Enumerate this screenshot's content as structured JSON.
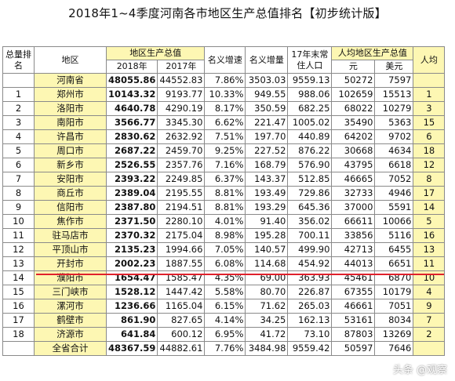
{
  "title": "2018年1~4季度河南各市地区生产总值排名【初步统计版】",
  "header": {
    "rank": "总量排名",
    "region": "地区",
    "gdp_group": "地区生产总值",
    "gdp_2018": "2018年",
    "gdp_2017": "2017年",
    "nominal_growth": "名义增速",
    "nominal_increase": "名义增量",
    "resident_pop": "17年末常住人口",
    "per_capita_group": "人均地区生产总值",
    "per_capita_yuan": "元",
    "per_capita_usd": "美元",
    "per_capita_rank": "人均"
  },
  "rows": [
    {
      "rank": "",
      "region": "河南省",
      "gdp2018": "48055.86",
      "gdp2017": "44552.83",
      "growth": "7.86%",
      "increase": "3503.03",
      "pop": "9559.13",
      "yuan": "50272",
      "usd": "7597",
      "pc_rank": ""
    },
    {
      "rank": "1",
      "region": "郑州市",
      "gdp2018": "10143.32",
      "gdp2017": "9193.77",
      "growth": "10.33%",
      "increase": "949.55",
      "pop": "988.06",
      "yuan": "102659",
      "usd": "15513",
      "pc_rank": "1"
    },
    {
      "rank": "2",
      "region": "洛阳市",
      "gdp2018": "4640.78",
      "gdp2017": "4290.19",
      "growth": "8.17%",
      "increase": "350.59",
      "pop": "682.25",
      "yuan": "68022",
      "usd": "10279",
      "pc_rank": "3"
    },
    {
      "rank": "3",
      "region": "南阳市",
      "gdp2018": "3566.77",
      "gdp2017": "3345.30",
      "growth": "6.62%",
      "increase": "221.47",
      "pop": "1005.02",
      "yuan": "35490",
      "usd": "5363",
      "pc_rank": "15"
    },
    {
      "rank": "4",
      "region": "许昌市",
      "gdp2018": "2830.62",
      "gdp2017": "2632.92",
      "growth": "7.51%",
      "increase": "197.70",
      "pop": "440.89",
      "yuan": "64202",
      "usd": "9702",
      "pc_rank": "6"
    },
    {
      "rank": "5",
      "region": "周口市",
      "gdp2018": "2687.22",
      "gdp2017": "2459.70",
      "growth": "9.25%",
      "increase": "227.52",
      "pop": "876.22",
      "yuan": "30668",
      "usd": "4634",
      "pc_rank": "18"
    },
    {
      "rank": "6",
      "region": "新乡市",
      "gdp2018": "2526.55",
      "gdp2017": "2357.76",
      "growth": "7.16%",
      "increase": "168.79",
      "pop": "576.90",
      "yuan": "43795",
      "usd": "6618",
      "pc_rank": "12"
    },
    {
      "rank": "7",
      "region": "安阳市",
      "gdp2018": "2393.22",
      "gdp2017": "2249.85",
      "growth": "6.37%",
      "increase": "143.37",
      "pop": "512.85",
      "yuan": "46665",
      "usd": "7052",
      "pc_rank": "8"
    },
    {
      "rank": "8",
      "region": "商丘市",
      "gdp2018": "2389.04",
      "gdp2017": "2195.55",
      "growth": "8.81%",
      "increase": "193.49",
      "pop": "729.86",
      "yuan": "32733",
      "usd": "4946",
      "pc_rank": "17"
    },
    {
      "rank": "9",
      "region": "信阳市",
      "gdp2018": "2387.80",
      "gdp2017": "2194.51",
      "growth": "8.81%",
      "increase": "193.29",
      "pop": "645.36",
      "yuan": "37000",
      "usd": "5591",
      "pc_rank": "14"
    },
    {
      "rank": "10",
      "region": "焦作市",
      "gdp2018": "2371.50",
      "gdp2017": "2280.10",
      "growth": "4.01%",
      "increase": "91.40",
      "pop": "356.02",
      "yuan": "66611",
      "usd": "10066",
      "pc_rank": "5"
    },
    {
      "rank": "11",
      "region": "驻马店市",
      "gdp2018": "2370.32",
      "gdp2017": "2175.04",
      "growth": "8.98%",
      "increase": "195.28",
      "pop": "700.11",
      "yuan": "33856",
      "usd": "5116",
      "pc_rank": "16"
    },
    {
      "rank": "12",
      "region": "平顶山市",
      "gdp2018": "2135.23",
      "gdp2017": "1994.66",
      "growth": "7.05%",
      "increase": "140.57",
      "pop": "499.90",
      "yuan": "42713",
      "usd": "6455",
      "pc_rank": "13"
    },
    {
      "rank": "13",
      "region": "开封市",
      "gdp2018": "2002.23",
      "gdp2017": "1887.55",
      "growth": "6.08%",
      "increase": "114.68",
      "pop": "454.92",
      "yuan": "44013",
      "usd": "6651",
      "pc_rank": "11"
    },
    {
      "rank": "14",
      "region": "濮阳市",
      "gdp2018": "1654.47",
      "gdp2017": "1585.47",
      "growth": "4.35%",
      "increase": "69.00",
      "pop": "363.93",
      "yuan": "45461",
      "usd": "6870",
      "pc_rank": "10"
    },
    {
      "rank": "15",
      "region": "三门峡市",
      "gdp2018": "1528.12",
      "gdp2017": "1447.42",
      "growth": "5.58%",
      "increase": "80.70",
      "pop": "226.87",
      "yuan": "67355",
      "usd": "10179",
      "pc_rank": "4"
    },
    {
      "rank": "16",
      "region": "漯河市",
      "gdp2018": "1236.66",
      "gdp2017": "1165.04",
      "growth": "6.15%",
      "increase": "71.62",
      "pop": "265.03",
      "yuan": "46661",
      "usd": "7051",
      "pc_rank": "9"
    },
    {
      "rank": "17",
      "region": "鹤壁市",
      "gdp2018": "861.90",
      "gdp2017": "827.65",
      "growth": "4.14%",
      "increase": "34.25",
      "pop": "162.13",
      "yuan": "53161",
      "usd": "8034",
      "pc_rank": "7"
    },
    {
      "rank": "18",
      "region": "济源市",
      "gdp2018": "641.84",
      "gdp2017": "600.12",
      "growth": "6.95%",
      "increase": "41.72",
      "pop": "73.10",
      "yuan": "87803",
      "usd": "13269",
      "pc_rank": "2"
    },
    {
      "rank": "",
      "region": "全省合计",
      "gdp2018": "48367.59",
      "gdp2017": "44882.61",
      "growth": "7.76%",
      "increase": "3484.98",
      "pop": "9559.42",
      "yuan": "50597",
      "usd": "7646",
      "pc_rank": ""
    }
  ],
  "watermark": "头条 @观察"
}
